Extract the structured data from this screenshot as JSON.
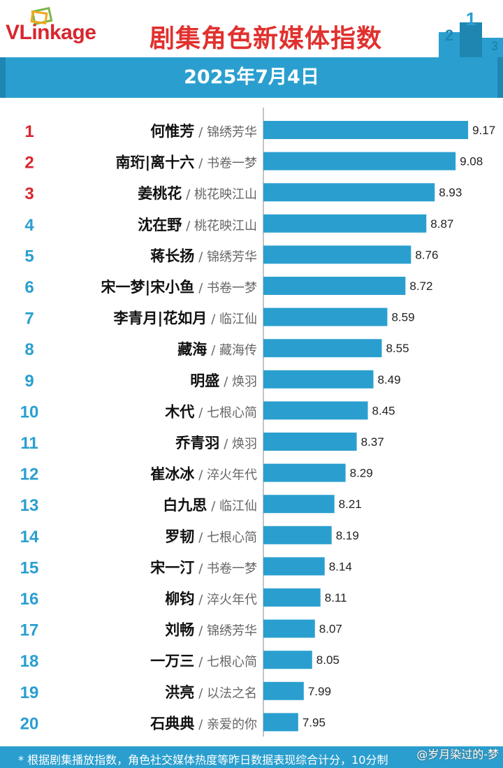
{
  "header": {
    "logo_v": "V",
    "logo_rest": "Linkage",
    "title": "剧集角色新媒体指数",
    "podium": [
      "2",
      "1",
      "3"
    ]
  },
  "banner": {
    "date": "2025年7月4日"
  },
  "chart_data": {
    "type": "bar",
    "orientation": "horizontal",
    "xlim": [
      7.7,
      9.3
    ],
    "grid": false,
    "colors": {
      "bar": "#2a9fcf",
      "rank_top3": "#d8262e",
      "rank_other": "#2a9fcf"
    },
    "rows": [
      {
        "rank": "1",
        "name": "何惟芳",
        "show": "锦绣芳华",
        "value": 9.17
      },
      {
        "rank": "2",
        "name": "南珩|离十六",
        "show": "书卷一梦",
        "value": 9.08
      },
      {
        "rank": "3",
        "name": "姜桃花",
        "show": "桃花映江山",
        "value": 8.93
      },
      {
        "rank": "4",
        "name": "沈在野",
        "show": "桃花映江山",
        "value": 8.87
      },
      {
        "rank": "5",
        "name": "蒋长扬",
        "show": "锦绣芳华",
        "value": 8.76
      },
      {
        "rank": "6",
        "name": "宋一梦|宋小鱼",
        "show": "书卷一梦",
        "value": 8.72
      },
      {
        "rank": "7",
        "name": "李青月|花如月",
        "show": "临江仙",
        "value": 8.59
      },
      {
        "rank": "8",
        "name": "藏海",
        "show": "藏海传",
        "value": 8.55
      },
      {
        "rank": "9",
        "name": "明盛",
        "show": "焕羽",
        "value": 8.49
      },
      {
        "rank": "10",
        "name": "木代",
        "show": "七根心简",
        "value": 8.45
      },
      {
        "rank": "11",
        "name": "乔青羽",
        "show": "焕羽",
        "value": 8.37
      },
      {
        "rank": "12",
        "name": "崔冰冰",
        "show": "淬火年代",
        "value": 8.29
      },
      {
        "rank": "13",
        "name": "白九思",
        "show": "临江仙",
        "value": 8.21
      },
      {
        "rank": "14",
        "name": "罗韧",
        "show": "七根心简",
        "value": 8.19
      },
      {
        "rank": "15",
        "name": "宋一汀",
        "show": "书卷一梦",
        "value": 8.14
      },
      {
        "rank": "16",
        "name": "柳钧",
        "show": "淬火年代",
        "value": 8.11
      },
      {
        "rank": "17",
        "name": "刘畅",
        "show": "锦绣芳华",
        "value": 8.07
      },
      {
        "rank": "18",
        "name": "一万三",
        "show": "七根心简",
        "value": 8.05
      },
      {
        "rank": "19",
        "name": "洪亮",
        "show": "以法之名",
        "value": 7.99
      },
      {
        "rank": "20",
        "name": "石典典",
        "show": "亲爱的你",
        "value": 7.95
      }
    ]
  },
  "footer": {
    "note": "* 根据剧集播放指数，角色社交媒体热度等昨日数据表现综合计分，10分制",
    "watermark": "@岁月染过的-梦"
  }
}
